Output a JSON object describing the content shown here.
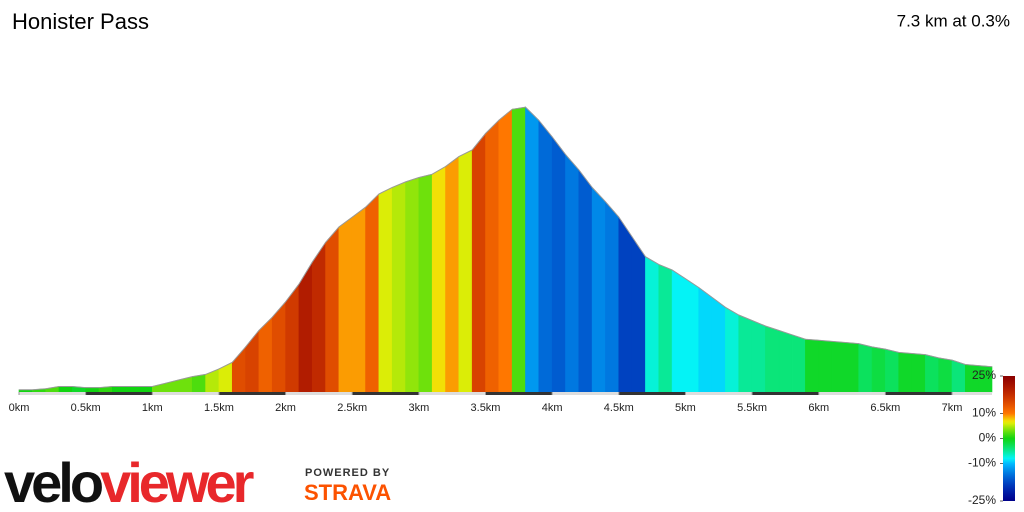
{
  "chart_data": {
    "type": "elevation-profile",
    "title": "Honister Pass",
    "subtitle": "7.3 km at 0.3%",
    "x": [
      0,
      0.1,
      0.2,
      0.3,
      0.4,
      0.5,
      0.6,
      0.7,
      0.8,
      0.9,
      1.0,
      1.1,
      1.2,
      1.3,
      1.4,
      1.5,
      1.6,
      1.7,
      1.8,
      1.9,
      2.0,
      2.1,
      2.2,
      2.3,
      2.4,
      2.5,
      2.6,
      2.7,
      2.8,
      2.9,
      3.0,
      3.1,
      3.2,
      3.3,
      3.4,
      3.5,
      3.6,
      3.7,
      3.8,
      3.9,
      4.0,
      4.1,
      4.2,
      4.3,
      4.4,
      4.5,
      4.6,
      4.7,
      4.8,
      4.9,
      5.0,
      5.1,
      5.2,
      5.3,
      5.4,
      5.5,
      5.6,
      5.7,
      5.8,
      5.9,
      6.0,
      6.1,
      6.2,
      6.3,
      6.4,
      6.5,
      6.6,
      6.7,
      6.8,
      6.9,
      7.0,
      7.1,
      7.2,
      7.3
    ],
    "values": [
      102,
      102,
      103,
      105,
      105,
      104,
      104,
      105,
      105,
      105,
      105,
      108,
      111,
      114,
      116,
      121,
      127,
      141,
      156,
      168,
      182,
      198,
      218,
      236,
      250,
      259,
      268,
      280,
      286,
      291,
      295,
      298,
      305,
      314,
      320,
      335,
      347,
      357,
      359,
      347,
      332,
      316,
      302,
      286,
      273,
      259,
      241,
      223,
      216,
      211,
      203,
      195,
      186,
      177,
      170,
      165,
      160,
      156,
      152,
      148,
      147,
      146,
      145,
      144,
      141,
      139,
      136,
      135,
      134,
      131,
      129,
      125,
      124,
      123
    ],
    "xlim": [
      0,
      7.3
    ],
    "ylim": [
      100,
      360
    ],
    "xticks": [
      {
        "value": 0,
        "label": "0km"
      },
      {
        "value": 0.5,
        "label": "0.5km"
      },
      {
        "value": 1,
        "label": "1km"
      },
      {
        "value": 1.5,
        "label": "1.5km"
      },
      {
        "value": 2,
        "label": "2km"
      },
      {
        "value": 2.5,
        "label": "2.5km"
      },
      {
        "value": 3,
        "label": "3km"
      },
      {
        "value": 3.5,
        "label": "3.5km"
      },
      {
        "value": 4,
        "label": "4km"
      },
      {
        "value": 4.5,
        "label": "4.5km"
      },
      {
        "value": 5,
        "label": "5km"
      },
      {
        "value": 5.5,
        "label": "5.5km"
      },
      {
        "value": 6,
        "label": "6km"
      },
      {
        "value": 6.5,
        "label": "6.5km"
      },
      {
        "value": 7,
        "label": "7km"
      }
    ],
    "colorbar": {
      "lim": [
        -25,
        25
      ],
      "ticks": [
        {
          "value": 25,
          "label": "25%"
        },
        {
          "value": 10,
          "label": "10%"
        },
        {
          "value": 0,
          "label": "0%"
        },
        {
          "value": -10,
          "label": "-10%"
        },
        {
          "value": -25,
          "label": "-25%"
        }
      ],
      "colors": [
        [
          0,
          100,
          27
        ],
        [
          28,
          100,
          50
        ],
        [
          120,
          85,
          45
        ],
        [
          196,
          100,
          50
        ],
        [
          240,
          100,
          27
        ]
      ]
    },
    "logo": {
      "part1": "velo",
      "part2": "viewer",
      "powered": "POWERED BY",
      "strava": "STRAVA"
    }
  }
}
